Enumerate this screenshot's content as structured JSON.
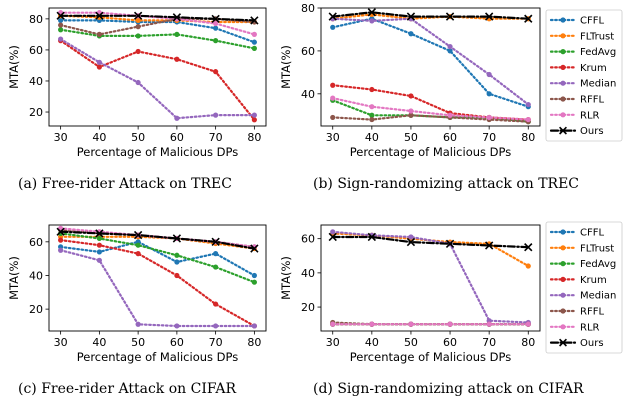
{
  "series_styles": [
    {
      "name": "CFFL",
      "color": "#1f77b4",
      "marker": "circle"
    },
    {
      "name": "FLTrust",
      "color": "#ff7f0e",
      "marker": "circle"
    },
    {
      "name": "FedAvg",
      "color": "#2ca02c",
      "marker": "circle"
    },
    {
      "name": "Krum",
      "color": "#d62728",
      "marker": "circle"
    },
    {
      "name": "Median",
      "color": "#9467bd",
      "marker": "circle"
    },
    {
      "name": "RFFL",
      "color": "#8c564b",
      "marker": "circle"
    },
    {
      "name": "RLR",
      "color": "#e377c2",
      "marker": "circle"
    },
    {
      "name": "Ours",
      "color": "#000000",
      "marker": "x"
    }
  ],
  "chart_data": [
    {
      "type": "line",
      "caption": "(a) Free-rider Attack on TREC",
      "xlabel": "Percentage of Malicious DPs",
      "ylabel": "MTA(%)",
      "x": [
        30,
        40,
        50,
        60,
        70,
        80
      ],
      "xlim": [
        27,
        83
      ],
      "ylim": [
        11,
        87
      ],
      "yticks": [
        20,
        40,
        60,
        80
      ],
      "series": [
        {
          "name": "CFFL",
          "values": [
            79,
            79,
            78,
            78,
            74,
            65
          ]
        },
        {
          "name": "FLTrust",
          "values": [
            82,
            81,
            79,
            79,
            78,
            78
          ]
        },
        {
          "name": "FedAvg",
          "values": [
            73,
            69,
            69,
            70,
            66,
            61
          ]
        },
        {
          "name": "Krum",
          "values": [
            66,
            49,
            59,
            54,
            46,
            15
          ]
        },
        {
          "name": "Median",
          "values": [
            67,
            52,
            39,
            16,
            18,
            18
          ]
        },
        {
          "name": "RFFL",
          "values": [
            76,
            70,
            75,
            80,
            80,
            78
          ]
        },
        {
          "name": "RLR",
          "values": [
            84,
            84,
            82,
            80,
            77,
            70
          ]
        },
        {
          "name": "Ours",
          "values": [
            82,
            82,
            82,
            81,
            80,
            79
          ]
        }
      ]
    },
    {
      "type": "line",
      "caption": "(b) Sign-randomizing attack on TREC",
      "xlabel": "Percentage of Malicious DPs",
      "ylabel": "MTA(%)",
      "x": [
        30,
        40,
        50,
        60,
        70,
        80
      ],
      "xlim": [
        27,
        83
      ],
      "ylim": [
        25,
        80
      ],
      "yticks": [
        40,
        60,
        80
      ],
      "series": [
        {
          "name": "CFFL",
          "values": [
            71,
            75,
            68,
            60,
            40,
            34
          ]
        },
        {
          "name": "FLTrust",
          "values": [
            75,
            77,
            75,
            76,
            75,
            75
          ]
        },
        {
          "name": "FedAvg",
          "values": [
            37,
            30,
            30,
            29,
            29,
            27
          ]
        },
        {
          "name": "Krum",
          "values": [
            44,
            42,
            39,
            31,
            29,
            28
          ]
        },
        {
          "name": "Median",
          "values": [
            75,
            74,
            75,
            62,
            49,
            35
          ]
        },
        {
          "name": "RFFL",
          "values": [
            29,
            28,
            30,
            29,
            28,
            27
          ]
        },
        {
          "name": "RLR",
          "values": [
            38,
            34,
            32,
            30,
            29,
            28
          ]
        },
        {
          "name": "Ours",
          "values": [
            76,
            78,
            76,
            76,
            76,
            75
          ]
        }
      ]
    },
    {
      "type": "line",
      "caption": "(c) Free-rider Attack on CIFAR",
      "xlabel": "Percentage of Malicious DPs",
      "ylabel": "MTA(%)",
      "x": [
        30,
        40,
        50,
        60,
        70,
        80
      ],
      "xlim": [
        27,
        83
      ],
      "ylim": [
        7,
        70
      ],
      "yticks": [
        20,
        40,
        60
      ],
      "series": [
        {
          "name": "CFFL",
          "values": [
            57,
            54,
            60,
            48,
            53,
            40
          ]
        },
        {
          "name": "FLTrust",
          "values": [
            63,
            63,
            63,
            62,
            59,
            56
          ]
        },
        {
          "name": "FedAvg",
          "values": [
            65,
            62,
            58,
            52,
            45,
            36
          ]
        },
        {
          "name": "Krum",
          "values": [
            61,
            58,
            53,
            40,
            23,
            10
          ]
        },
        {
          "name": "Median",
          "values": [
            55,
            49,
            11,
            10,
            10,
            10
          ]
        },
        {
          "name": "RFFL",
          "values": [
            67,
            65,
            64,
            62,
            60,
            57
          ]
        },
        {
          "name": "RLR",
          "values": [
            68,
            66,
            64,
            62,
            60,
            57
          ]
        },
        {
          "name": "Ours",
          "values": [
            66,
            65,
            64,
            62,
            60,
            56
          ]
        }
      ]
    },
    {
      "type": "line",
      "caption": "(d) Sign-randomizing attack on CIFAR",
      "xlabel": "Percentage of Malicious DPs",
      "ylabel": "MTA(%)",
      "x": [
        30,
        40,
        50,
        60,
        70,
        80
      ],
      "xlim": [
        27,
        83
      ],
      "ylim": [
        6,
        68
      ],
      "yticks": [
        20,
        40,
        60
      ],
      "series": [
        {
          "name": "CFFL",
          "values": [
            10,
            10,
            10,
            10,
            10,
            10
          ]
        },
        {
          "name": "FLTrust",
          "values": [
            63,
            62,
            60,
            58,
            57,
            44
          ]
        },
        {
          "name": "FedAvg",
          "values": [
            10,
            10,
            10,
            10,
            10,
            10
          ]
        },
        {
          "name": "Krum",
          "values": [
            10,
            10,
            10,
            10,
            10,
            10
          ]
        },
        {
          "name": "Median",
          "values": [
            64,
            62,
            61,
            57,
            12,
            11
          ]
        },
        {
          "name": "RFFL",
          "values": [
            11,
            10,
            10,
            10,
            10,
            10
          ]
        },
        {
          "name": "RLR",
          "values": [
            10,
            10,
            10,
            10,
            10,
            10
          ]
        },
        {
          "name": "Ours",
          "values": [
            61,
            61,
            58,
            57,
            56,
            55
          ]
        }
      ]
    }
  ],
  "legends": [
    [
      "CFFL",
      "FLTrust",
      "FedAvg",
      "Krum",
      "Median",
      "RFFL",
      "RLR",
      "Ours"
    ],
    [
      "CFFL",
      "FLTrust",
      "FedAvg",
      "Krum",
      "Median",
      "RFFL",
      "RLR",
      "Ours"
    ]
  ]
}
